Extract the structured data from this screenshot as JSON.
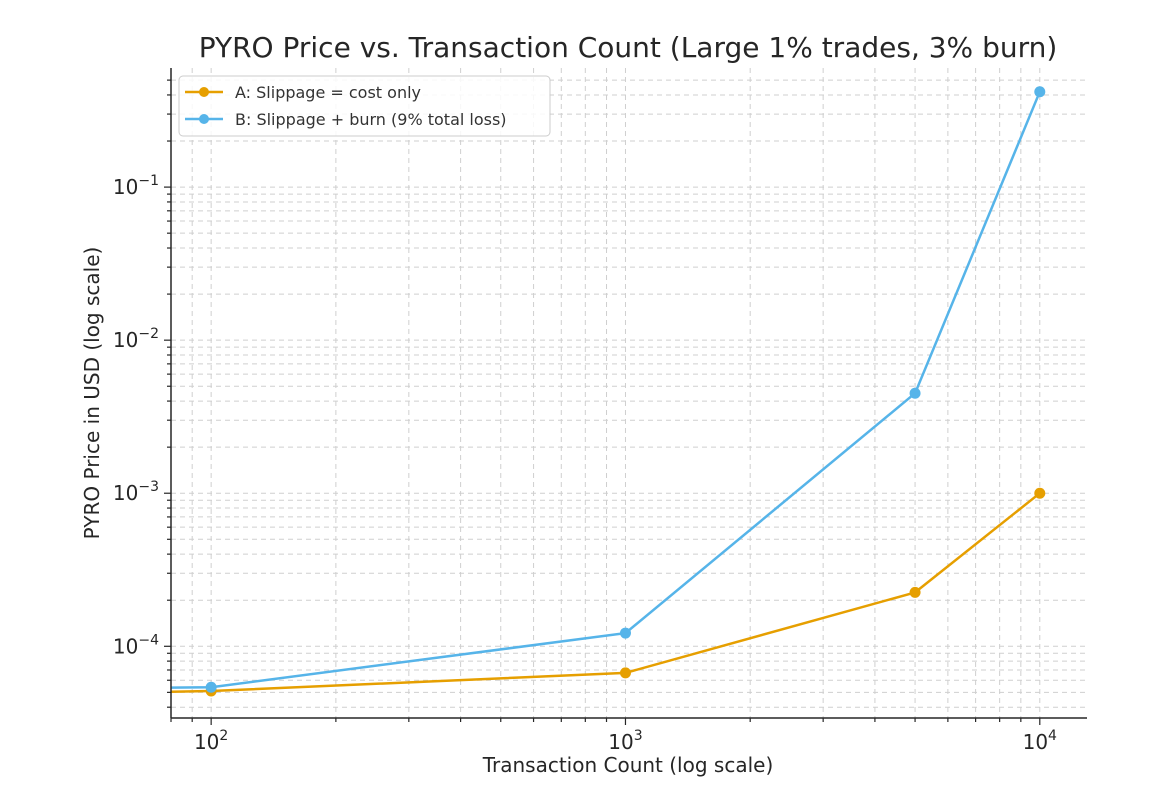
{
  "chart_data": {
    "type": "line",
    "title": "PYRO Price vs. Transaction Count (Large 1% trades, 3% burn)",
    "xlabel": "Transaction Count (log scale)",
    "ylabel": "PYRO Price in USD (log scale)",
    "xscale": "log",
    "yscale": "log",
    "xlim": [
      80,
      13000
    ],
    "ylim": [
      3.4e-05,
      0.6
    ],
    "x_ticks": [
      {
        "value": 100,
        "base": "10",
        "exp": "2"
      },
      {
        "value": 1000,
        "base": "10",
        "exp": "3"
      },
      {
        "value": 10000,
        "base": "10",
        "exp": "4"
      }
    ],
    "y_ticks": [
      {
        "value": 0.0001,
        "base": "10",
        "exp": "−4"
      },
      {
        "value": 0.001,
        "base": "10",
        "exp": "−3"
      },
      {
        "value": 0.01,
        "base": "10",
        "exp": "−2"
      },
      {
        "value": 0.1,
        "base": "10",
        "exp": "−1"
      }
    ],
    "grid": true,
    "legend_position": "top-left",
    "series": [
      {
        "name": "A: Slippage = cost only",
        "color": "#E69F00",
        "x": [
          80,
          100,
          1000,
          5000,
          10000
        ],
        "values": [
          5.05e-05,
          5.1e-05,
          6.7e-05,
          0.000225,
          0.001
        ],
        "markers": [
          false,
          true,
          true,
          true,
          true
        ]
      },
      {
        "name": "B: Slippage + burn (9% total loss)",
        "color": "#56B4E9",
        "x": [
          80,
          100,
          1000,
          5000,
          10000
        ],
        "values": [
          5.37e-05,
          5.4e-05,
          0.000122,
          0.0045,
          0.42
        ],
        "markers": [
          false,
          true,
          true,
          true,
          true
        ]
      }
    ]
  }
}
